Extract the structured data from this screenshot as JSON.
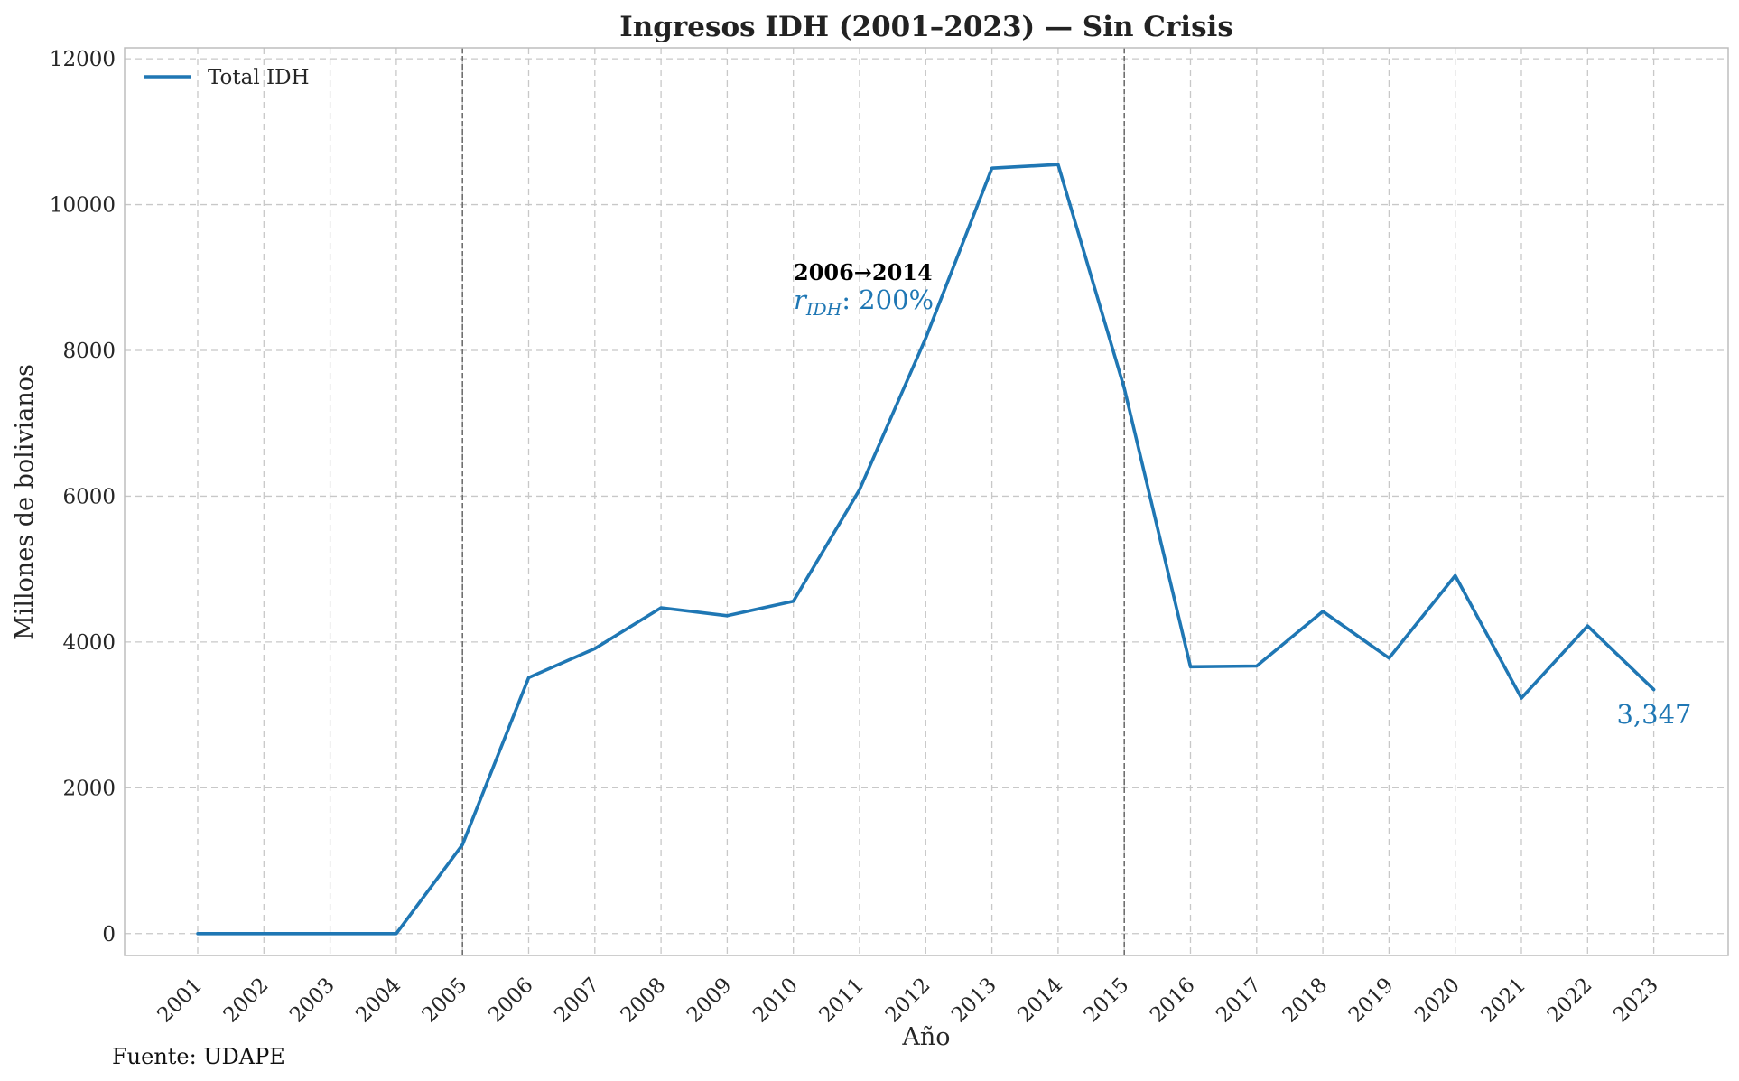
{
  "chart_data": {
    "type": "line",
    "title": "Ingresos IDH (2001–2023) — Sin Crisis",
    "xlabel": "Año",
    "ylabel": "Millones de bolivianos",
    "categories": [
      "2001",
      "2002",
      "2003",
      "2004",
      "2005",
      "2006",
      "2007",
      "2008",
      "2009",
      "2010",
      "2011",
      "2012",
      "2013",
      "2014",
      "2015",
      "2016",
      "2017",
      "2018",
      "2019",
      "2020",
      "2021",
      "2022",
      "2023"
    ],
    "series": [
      {
        "name": "Total IDH",
        "color": "#1f77b4",
        "values": [
          0,
          0,
          0,
          0,
          1220,
          3510,
          3910,
          4470,
          4360,
          4560,
          6090,
          8170,
          10500,
          10550,
          7480,
          3660,
          3670,
          4420,
          3780,
          4910,
          3230,
          4220,
          3347
        ]
      }
    ],
    "ylim": [
      -300,
      12150
    ],
    "yticks": [
      "0",
      "2000",
      "4000",
      "6000",
      "8000",
      "10000",
      "12000"
    ],
    "grid": true,
    "legend_position": "top-left",
    "reference_lines": [
      "2005",
      "2015"
    ],
    "annotations": {
      "period": "2006→2014",
      "rate_var": "r",
      "rate_sub": "IDH",
      "rate_value": ": 200%",
      "end_value": "3,347"
    },
    "source": "Fuente: UDAPE"
  }
}
